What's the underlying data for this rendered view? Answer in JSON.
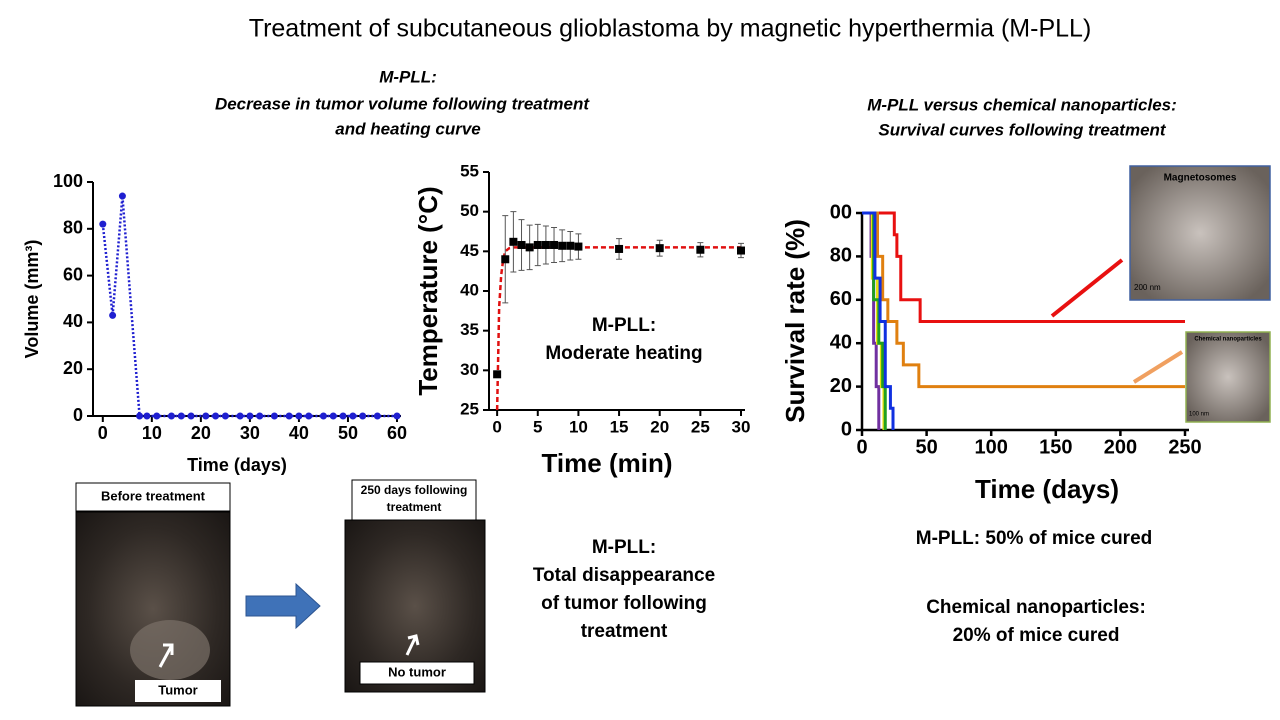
{
  "title": "Treatment of subcutaneous glioblastoma by magnetic hyperthermia (M-PLL)",
  "left_heading": [
    "M-PLL:",
    "Decrease  in tumor volume following treatment",
    "and heating curve"
  ],
  "right_heading": [
    "M-PLL versus chemical nanoparticles:",
    "Survival curves following treatment"
  ],
  "photo_before": {
    "label": "Before treatment",
    "arrow_label": "Tumor"
  },
  "photo_after": {
    "label": [
      "250 days following",
      "treatment"
    ],
    "arrow_label": "No tumor"
  },
  "photo_note": [
    "M-PLL:",
    "Total disappearance",
    "of tumor following",
    "treatment"
  ],
  "inset_magnetosomes": {
    "title": "Magnetosomes",
    "scale": "200 nm"
  },
  "inset_chemical": {
    "title": "Chemical nanoparticles",
    "scale": "100 nm"
  },
  "result_mpll": "M-PLL:  50% of mice cured",
  "result_chemical": [
    "Chemical nanoparticles:",
    "20% of mice cured"
  ],
  "chart_data": [
    {
      "type": "line",
      "xlabel": "Time (days)",
      "ylabel": "Volume (mm³)",
      "xlim": [
        -2,
        60
      ],
      "xticks": [
        0,
        10,
        20,
        30,
        40,
        50,
        60
      ],
      "ylim": [
        0,
        100
      ],
      "yticks": [
        0,
        20,
        40,
        60,
        80,
        100
      ],
      "series": [
        {
          "color": "#1f1fd0",
          "linestyle": "dotted",
          "marker": "circle",
          "x": [
            0,
            2,
            4,
            7.5,
            9,
            11,
            14,
            16,
            18,
            21,
            23,
            25,
            28,
            30,
            32,
            35,
            38,
            40,
            42,
            45,
            47,
            49,
            51,
            53,
            56,
            60
          ],
          "values": [
            82,
            43,
            94,
            0,
            0,
            0,
            0,
            0,
            0,
            0,
            0,
            0,
            0,
            0,
            0,
            0,
            0,
            0,
            0,
            0,
            0,
            0,
            0,
            0,
            0,
            0
          ]
        }
      ]
    },
    {
      "type": "scatter",
      "xlabel": "Time (min)",
      "ylabel": "Temperature (°C)",
      "annotation": [
        "M-PLL:",
        "Moderate heating"
      ],
      "xlim": [
        -1,
        30
      ],
      "xticks": [
        0,
        5,
        10,
        15,
        20,
        25,
        30
      ],
      "ylim": [
        25,
        55
      ],
      "yticks": [
        25,
        30,
        35,
        40,
        45,
        50,
        55
      ],
      "series": [
        {
          "color": "#e01010",
          "linestyle": "dashed",
          "x": [
            0,
            0.25,
            0.5,
            0.75,
            1,
            1.5,
            2,
            3,
            30
          ],
          "values": [
            25,
            38,
            42,
            44,
            45,
            45.4,
            45.5,
            45.5,
            45.5
          ]
        },
        {
          "color": "#000000",
          "marker": "square",
          "x": [
            0,
            1,
            2,
            3,
            4,
            5,
            6,
            7,
            8,
            9,
            10,
            15,
            20,
            25,
            30
          ],
          "values": [
            29.5,
            44,
            46.2,
            45.8,
            45.5,
            45.8,
            45.8,
            45.8,
            45.7,
            45.7,
            45.6,
            45.3,
            45.4,
            45.2,
            45.1
          ],
          "errors": [
            0,
            5.5,
            3.8,
            3.2,
            2.8,
            2.6,
            2.4,
            2.2,
            2,
            1.8,
            1.6,
            1.3,
            1,
            0.9,
            0.9
          ]
        }
      ]
    },
    {
      "type": "line",
      "drawstyle": "steps-post",
      "xlabel": "Time (days)",
      "ylabel": "Survival rate (%)",
      "xlim": [
        0,
        250
      ],
      "xticks": [
        0,
        50,
        100,
        150,
        200,
        250
      ],
      "ylim": [
        0,
        100
      ],
      "yticks": [
        0,
        20,
        40,
        60,
        80,
        {
          "value": 100,
          "label": "00"
        }
      ],
      "series": [
        {
          "color": "#e81010",
          "x": [
            0,
            25,
            27,
            30,
            45,
            250
          ],
          "values": [
            100,
            90,
            80,
            60,
            50,
            50
          ]
        },
        {
          "color": "#e08010",
          "x": [
            0,
            12,
            16,
            20,
            27,
            32,
            44,
            250
          ],
          "values": [
            100,
            80,
            60,
            50,
            40,
            30,
            20,
            20
          ]
        },
        {
          "color": "#7030a0",
          "x": [
            0,
            7,
            9,
            11,
            13
          ],
          "values": [
            100,
            80,
            40,
            20,
            0
          ]
        },
        {
          "color": "#e8e010",
          "x": [
            0,
            8,
            12,
            15,
            17
          ],
          "values": [
            100,
            70,
            40,
            20,
            0
          ]
        },
        {
          "color": "#20a020",
          "x": [
            0,
            9,
            13,
            16,
            18
          ],
          "values": [
            100,
            60,
            40,
            20,
            0
          ]
        },
        {
          "color": "#1030e0",
          "x": [
            0,
            10,
            14,
            18,
            22,
            24
          ],
          "values": [
            100,
            70,
            50,
            20,
            10,
            0
          ]
        }
      ]
    }
  ]
}
